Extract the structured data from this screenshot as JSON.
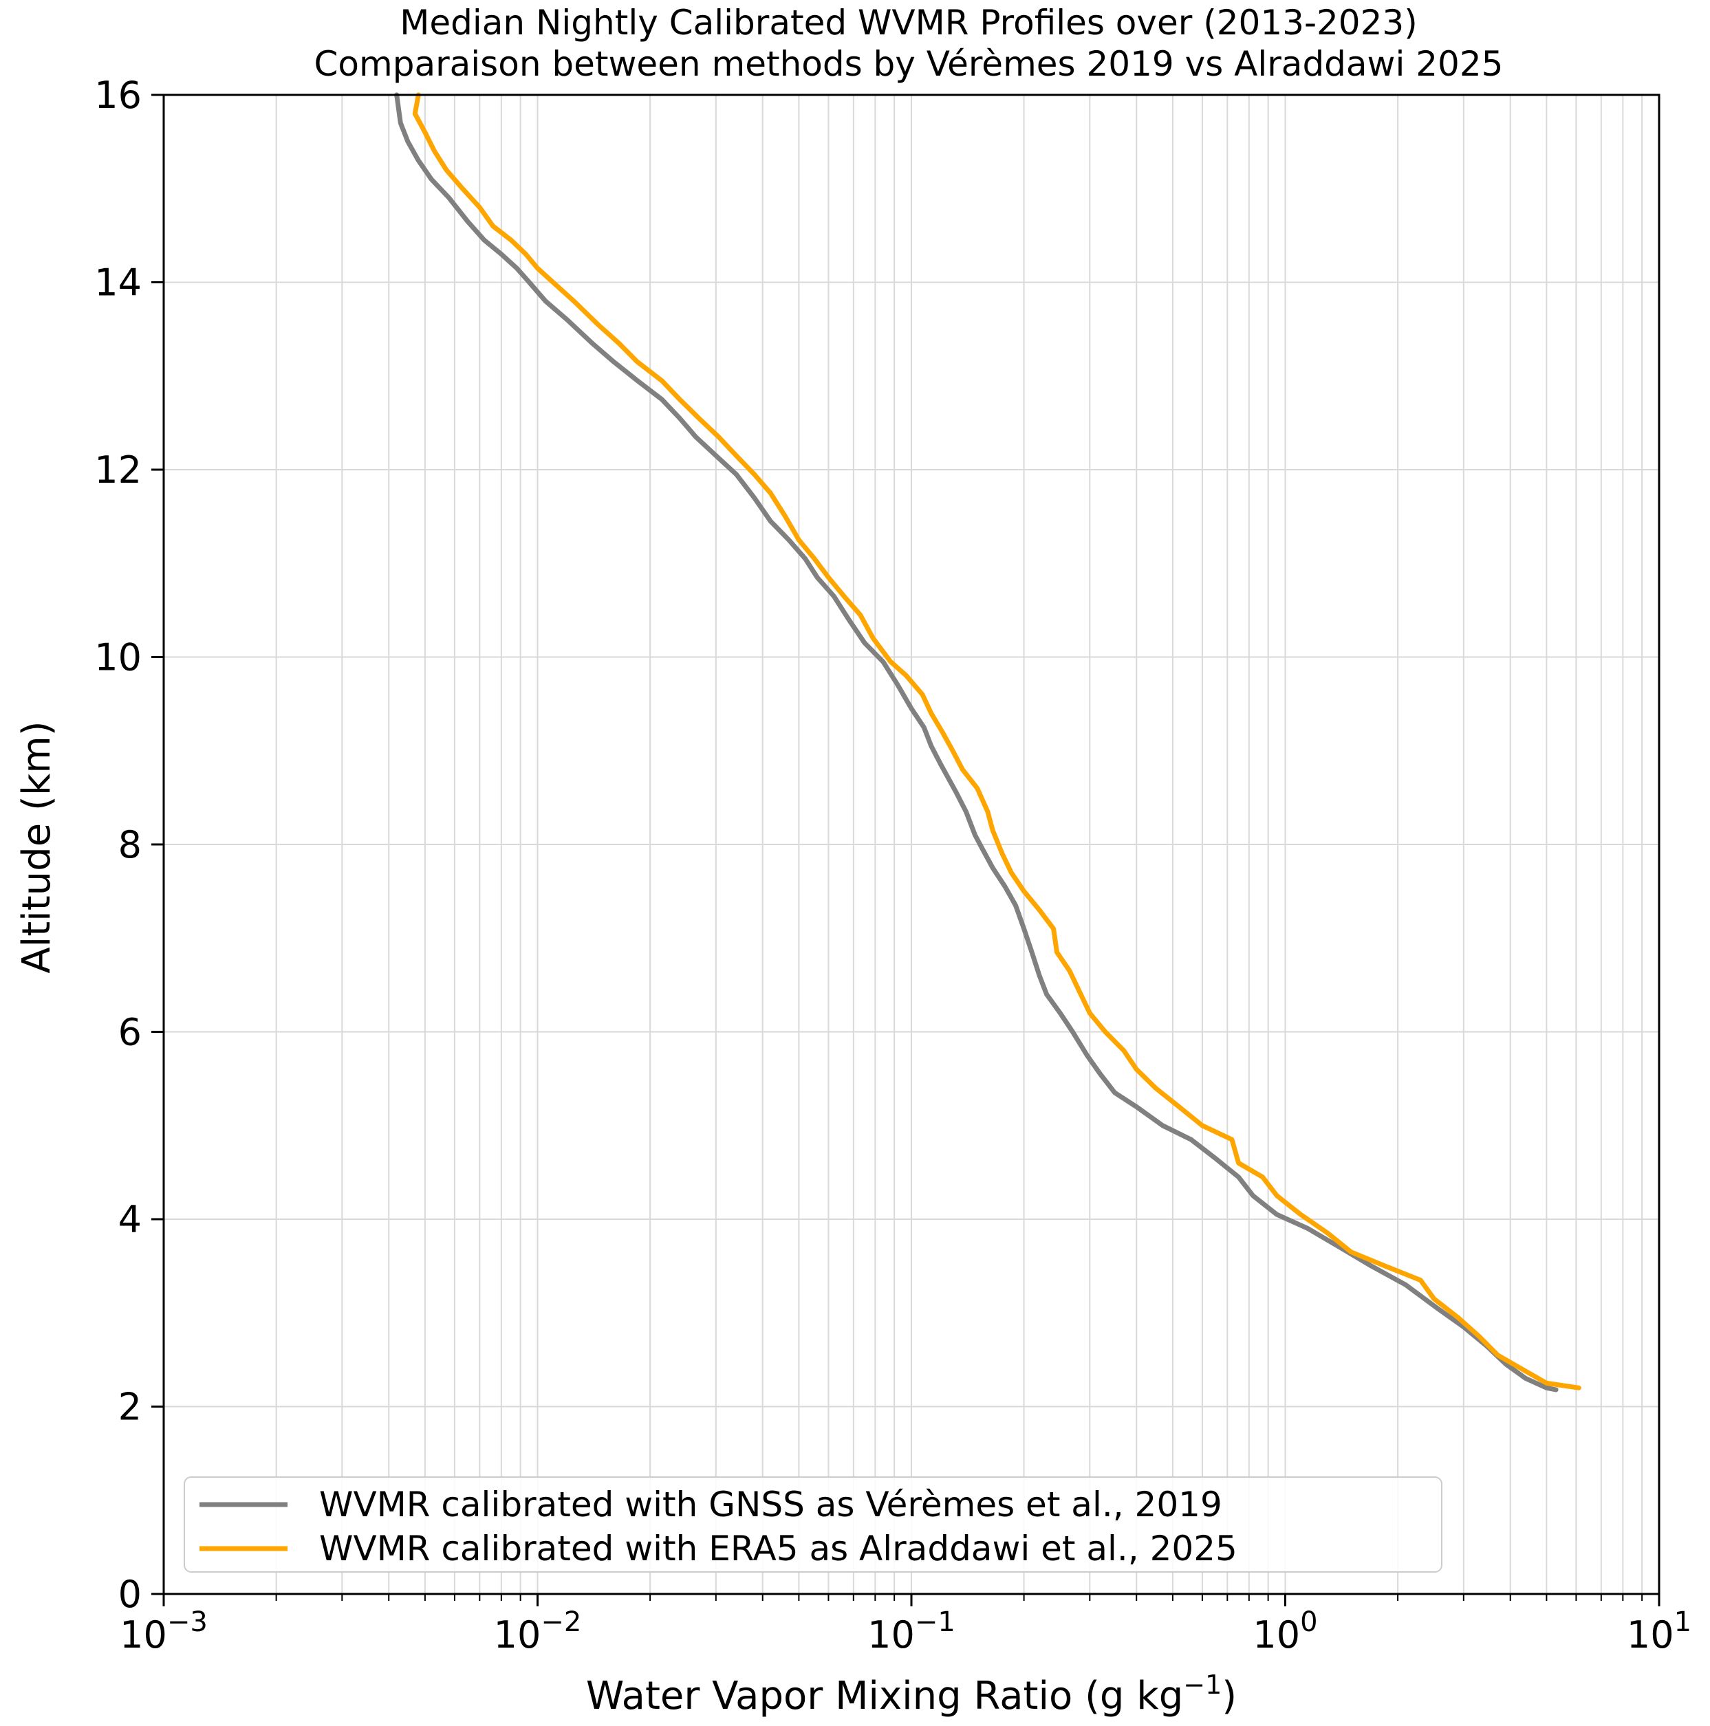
{
  "chart_data": {
    "type": "line",
    "title": "Median Nightly Calibrated WVMR Profiles over (2013-2023)",
    "subtitle": "Comparaison between methods by Vérèmes 2019 vs Alraddawi 2025",
    "xlabel": "Water Vapor Mixing Ratio (g kg",
    "xlabel_superscript": "−1",
    "xlabel_suffix": ")",
    "ylabel": "Altitude (km)",
    "xscale": "log",
    "xlim": [
      0.001,
      10
    ],
    "ylim": [
      0,
      16
    ],
    "grid": true,
    "legend_position": "lower-left",
    "x_ticks": [
      {
        "base": "10",
        "exp": "−3",
        "value": 0.001
      },
      {
        "base": "10",
        "exp": "−2",
        "value": 0.01
      },
      {
        "base": "10",
        "exp": "−1",
        "value": 0.1
      },
      {
        "base": "10",
        "exp": "0",
        "value": 1
      },
      {
        "base": "10",
        "exp": "1",
        "value": 10
      }
    ],
    "y_ticks": [
      "0",
      "2",
      "4",
      "6",
      "8",
      "10",
      "12",
      "14",
      "16"
    ],
    "series": [
      {
        "name": "WVMR calibrated with GNSS as Vérèmes et al., 2019",
        "color": "#808080",
        "points": [
          [
            0.0042,
            16.0
          ],
          [
            0.0043,
            15.7
          ],
          [
            0.0045,
            15.5
          ],
          [
            0.0048,
            15.3
          ],
          [
            0.0052,
            15.1
          ],
          [
            0.0058,
            14.9
          ],
          [
            0.0065,
            14.65
          ],
          [
            0.0072,
            14.45
          ],
          [
            0.008,
            14.3
          ],
          [
            0.0088,
            14.15
          ],
          [
            0.0095,
            14.0
          ],
          [
            0.0105,
            13.8
          ],
          [
            0.012,
            13.6
          ],
          [
            0.014,
            13.35
          ],
          [
            0.016,
            13.15
          ],
          [
            0.0185,
            12.95
          ],
          [
            0.0215,
            12.75
          ],
          [
            0.024,
            12.55
          ],
          [
            0.0265,
            12.35
          ],
          [
            0.03,
            12.15
          ],
          [
            0.034,
            11.95
          ],
          [
            0.038,
            11.7
          ],
          [
            0.042,
            11.45
          ],
          [
            0.047,
            11.25
          ],
          [
            0.052,
            11.05
          ],
          [
            0.056,
            10.85
          ],
          [
            0.062,
            10.65
          ],
          [
            0.068,
            10.4
          ],
          [
            0.075,
            10.15
          ],
          [
            0.084,
            9.95
          ],
          [
            0.092,
            9.7
          ],
          [
            0.1,
            9.45
          ],
          [
            0.108,
            9.25
          ],
          [
            0.113,
            9.05
          ],
          [
            0.12,
            8.85
          ],
          [
            0.132,
            8.55
          ],
          [
            0.14,
            8.35
          ],
          [
            0.148,
            8.1
          ],
          [
            0.155,
            7.95
          ],
          [
            0.165,
            7.75
          ],
          [
            0.178,
            7.55
          ],
          [
            0.19,
            7.35
          ],
          [
            0.2,
            7.1
          ],
          [
            0.21,
            6.85
          ],
          [
            0.22,
            6.6
          ],
          [
            0.23,
            6.4
          ],
          [
            0.25,
            6.2
          ],
          [
            0.27,
            6.0
          ],
          [
            0.295,
            5.75
          ],
          [
            0.32,
            5.55
          ],
          [
            0.35,
            5.35
          ],
          [
            0.4,
            5.2
          ],
          [
            0.47,
            5.0
          ],
          [
            0.56,
            4.85
          ],
          [
            0.65,
            4.65
          ],
          [
            0.75,
            4.45
          ],
          [
            0.82,
            4.25
          ],
          [
            0.95,
            4.05
          ],
          [
            1.15,
            3.9
          ],
          [
            1.4,
            3.7
          ],
          [
            1.7,
            3.5
          ],
          [
            2.1,
            3.3
          ],
          [
            2.55,
            3.05
          ],
          [
            3.0,
            2.85
          ],
          [
            3.45,
            2.65
          ],
          [
            3.9,
            2.45
          ],
          [
            4.4,
            2.3
          ],
          [
            5.0,
            2.2
          ],
          [
            5.3,
            2.18
          ]
        ]
      },
      {
        "name": "WVMR calibrated with ERA5 as Alraddawi et al., 2025",
        "color": "#FFA500",
        "points": [
          [
            0.0048,
            16.0
          ],
          [
            0.0047,
            15.8
          ],
          [
            0.005,
            15.6
          ],
          [
            0.0053,
            15.4
          ],
          [
            0.0057,
            15.2
          ],
          [
            0.0063,
            15.0
          ],
          [
            0.007,
            14.8
          ],
          [
            0.0076,
            14.6
          ],
          [
            0.0085,
            14.45
          ],
          [
            0.0093,
            14.3
          ],
          [
            0.01,
            14.15
          ],
          [
            0.011,
            14.0
          ],
          [
            0.0125,
            13.8
          ],
          [
            0.0145,
            13.55
          ],
          [
            0.0165,
            13.35
          ],
          [
            0.0185,
            13.15
          ],
          [
            0.0215,
            12.95
          ],
          [
            0.024,
            12.75
          ],
          [
            0.027,
            12.55
          ],
          [
            0.0305,
            12.35
          ],
          [
            0.034,
            12.15
          ],
          [
            0.038,
            11.95
          ],
          [
            0.042,
            11.75
          ],
          [
            0.046,
            11.5
          ],
          [
            0.05,
            11.25
          ],
          [
            0.055,
            11.05
          ],
          [
            0.06,
            10.85
          ],
          [
            0.066,
            10.65
          ],
          [
            0.073,
            10.45
          ],
          [
            0.079,
            10.2
          ],
          [
            0.088,
            9.95
          ],
          [
            0.097,
            9.8
          ],
          [
            0.107,
            9.6
          ],
          [
            0.113,
            9.4
          ],
          [
            0.121,
            9.2
          ],
          [
            0.129,
            9.0
          ],
          [
            0.137,
            8.8
          ],
          [
            0.15,
            8.6
          ],
          [
            0.16,
            8.35
          ],
          [
            0.165,
            8.15
          ],
          [
            0.175,
            7.9
          ],
          [
            0.185,
            7.7
          ],
          [
            0.2,
            7.5
          ],
          [
            0.22,
            7.3
          ],
          [
            0.24,
            7.1
          ],
          [
            0.245,
            6.85
          ],
          [
            0.265,
            6.65
          ],
          [
            0.28,
            6.45
          ],
          [
            0.3,
            6.2
          ],
          [
            0.33,
            6.0
          ],
          [
            0.37,
            5.8
          ],
          [
            0.4,
            5.6
          ],
          [
            0.45,
            5.4
          ],
          [
            0.52,
            5.2
          ],
          [
            0.6,
            5.0
          ],
          [
            0.72,
            4.85
          ],
          [
            0.75,
            4.6
          ],
          [
            0.87,
            4.45
          ],
          [
            0.95,
            4.25
          ],
          [
            1.1,
            4.05
          ],
          [
            1.3,
            3.85
          ],
          [
            1.5,
            3.65
          ],
          [
            1.85,
            3.5
          ],
          [
            2.3,
            3.35
          ],
          [
            2.5,
            3.15
          ],
          [
            2.9,
            2.95
          ],
          [
            3.3,
            2.75
          ],
          [
            3.7,
            2.55
          ],
          [
            4.3,
            2.4
          ],
          [
            5.0,
            2.25
          ],
          [
            6.1,
            2.2
          ]
        ]
      }
    ]
  }
}
